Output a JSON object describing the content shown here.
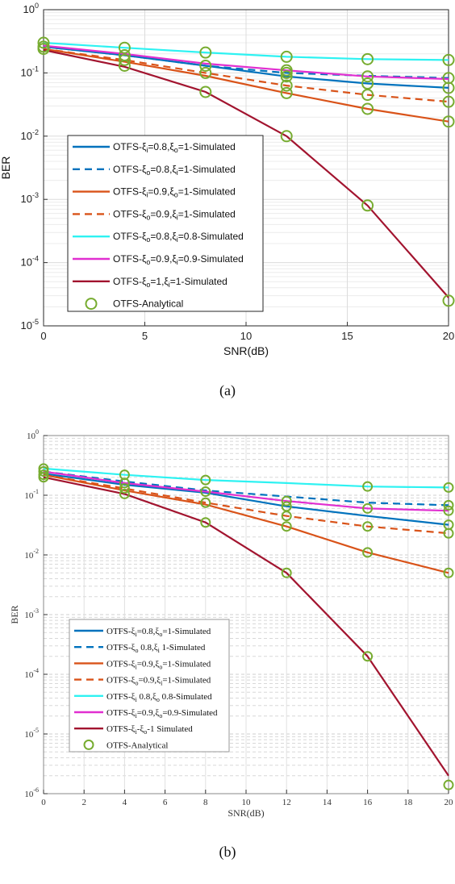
{
  "chart_data": [
    {
      "type": "line",
      "caption": "(a)",
      "xlabel": "SNR(dB)",
      "ylabel": "BER",
      "xlim": [
        0,
        20
      ],
      "ylim_exp": [
        -5,
        0
      ],
      "yscale": "log",
      "xticks": [
        0,
        5,
        10,
        15,
        20
      ],
      "grid": true,
      "legend_position": "bottom-left",
      "series": [
        {
          "label_parts": [
            "OTFS-ξ",
            "i",
            "=0.8,ξ",
            "o",
            "=1-Simulated"
          ],
          "color": "#0072BD",
          "dash": "solid",
          "x": [
            0,
            4,
            8,
            12,
            16,
            20
          ],
          "y": [
            0.26,
            0.19,
            0.13,
            0.088,
            0.068,
            0.058
          ]
        },
        {
          "label_parts": [
            "OTFS-ξ",
            "o",
            "=0.8,ξ",
            "i",
            "=1-Simulated"
          ],
          "color": "#0072BD",
          "dash": "dash",
          "x": [
            0,
            4,
            8,
            12,
            16,
            20
          ],
          "y": [
            0.26,
            0.19,
            0.13,
            0.1,
            0.09,
            0.083
          ]
        },
        {
          "label_parts": [
            "OTFS-ξ",
            "i",
            "=0.9,ξ",
            "o",
            "=1-Simulated"
          ],
          "color": "#D95319",
          "dash": "solid",
          "x": [
            0,
            4,
            8,
            12,
            16,
            20
          ],
          "y": [
            0.24,
            0.15,
            0.09,
            0.048,
            0.027,
            0.017
          ]
        },
        {
          "label_parts": [
            "OTFS-ξ",
            "o",
            "=0.9,ξ",
            "i",
            "=1-Simulated"
          ],
          "color": "#D95319",
          "dash": "dash",
          "x": [
            0,
            4,
            8,
            12,
            16,
            20
          ],
          "y": [
            0.24,
            0.16,
            0.1,
            0.063,
            0.045,
            0.035
          ]
        },
        {
          "label_parts": [
            "OTFS-ξ",
            "o",
            "=0.8,ξ",
            "i",
            "=0.8-Simulated"
          ],
          "color": "#2EF2F2",
          "dash": "solid",
          "x": [
            0,
            4,
            8,
            12,
            16,
            20
          ],
          "y": [
            0.3,
            0.25,
            0.21,
            0.18,
            0.165,
            0.16
          ]
        },
        {
          "label_parts": [
            "OTFS-ξ",
            "o",
            "=0.9,ξ",
            "i",
            "=0.9-Simulated"
          ],
          "color": "#E12FD0",
          "dash": "solid",
          "x": [
            0,
            4,
            8,
            12,
            16,
            20
          ],
          "y": [
            0.27,
            0.2,
            0.14,
            0.11,
            0.088,
            0.08
          ]
        },
        {
          "label_parts": [
            "OTFS-ξ",
            "o",
            "=1,ξ",
            "i",
            "=1-Simulated"
          ],
          "color": "#A2142F",
          "dash": "solid",
          "x": [
            0,
            4,
            8,
            12,
            16,
            20
          ],
          "y": [
            0.23,
            0.125,
            0.05,
            0.01,
            0.0008,
            2.8e-05
          ]
        }
      ],
      "analytical": {
        "label": "OTFS-Analytical",
        "color": "#77AC30",
        "points": [
          [
            0,
            0.3
          ],
          [
            0,
            0.26
          ],
          [
            0,
            0.24
          ],
          [
            4,
            0.25
          ],
          [
            4,
            0.19
          ],
          [
            4,
            0.16
          ],
          [
            4,
            0.13
          ],
          [
            8,
            0.21
          ],
          [
            8,
            0.13
          ],
          [
            8,
            0.1
          ],
          [
            8,
            0.05
          ],
          [
            12,
            0.18
          ],
          [
            12,
            0.11
          ],
          [
            12,
            0.1
          ],
          [
            12,
            0.088
          ],
          [
            12,
            0.063
          ],
          [
            12,
            0.048
          ],
          [
            12,
            0.01
          ],
          [
            16,
            0.165
          ],
          [
            16,
            0.088
          ],
          [
            16,
            0.068
          ],
          [
            16,
            0.045
          ],
          [
            16,
            0.027
          ],
          [
            16,
            0.0008
          ],
          [
            20,
            0.16
          ],
          [
            20,
            0.083
          ],
          [
            20,
            0.058
          ],
          [
            20,
            0.035
          ],
          [
            20,
            0.017
          ],
          [
            20,
            2.5e-05
          ]
        ]
      }
    },
    {
      "type": "line",
      "caption": "(b)",
      "xlabel": "SNR(dB)",
      "ylabel": "BER",
      "xlim": [
        0,
        20
      ],
      "ylim_exp": [
        -6,
        0
      ],
      "yscale": "log",
      "xticks": [
        0,
        2,
        4,
        6,
        8,
        10,
        12,
        14,
        16,
        18,
        20
      ],
      "grid": true,
      "legend_position": "bottom-left",
      "series": [
        {
          "label_parts": [
            "OTFS-ξ",
            "i",
            "=0.8,ξ",
            "o",
            "=1-Simulated"
          ],
          "color": "#0072BD",
          "dash": "solid",
          "x": [
            0,
            4,
            8,
            12,
            16,
            20
          ],
          "y": [
            0.23,
            0.15,
            0.11,
            0.065,
            0.045,
            0.032
          ]
        },
        {
          "label_parts": [
            "OTFS-ξ",
            "o",
            " 0.8,ξ",
            "i",
            " 1-Simulated"
          ],
          "color": "#0072BD",
          "dash": "dash",
          "x": [
            0,
            4,
            8,
            12,
            16,
            20
          ],
          "y": [
            0.25,
            0.17,
            0.12,
            0.095,
            0.075,
            0.068
          ]
        },
        {
          "label_parts": [
            "OTFS-ξ",
            "i",
            "=0.9,ξ",
            "o",
            "=1-Simulated"
          ],
          "color": "#D95319",
          "dash": "solid",
          "x": [
            0,
            4,
            8,
            12,
            16,
            20
          ],
          "y": [
            0.22,
            0.12,
            0.07,
            0.03,
            0.011,
            0.005
          ]
        },
        {
          "label_parts": [
            "OTFS-ξ",
            "o",
            "=0.9,ξ",
            "i",
            "=1-Simulated"
          ],
          "color": "#D95319",
          "dash": "dash",
          "x": [
            0,
            4,
            8,
            12,
            16,
            20
          ],
          "y": [
            0.22,
            0.13,
            0.075,
            0.045,
            0.03,
            0.023
          ]
        },
        {
          "label_parts": [
            "OTFS-ξ",
            "i",
            " 0.8,ξ",
            "o",
            " 0.8-Simulated"
          ],
          "color": "#2EF2F2",
          "dash": "solid",
          "x": [
            0,
            4,
            8,
            12,
            16,
            20
          ],
          "y": [
            0.28,
            0.22,
            0.18,
            0.16,
            0.14,
            0.135
          ]
        },
        {
          "label_parts": [
            "OTFS-ξ",
            "i",
            "=0.9,ξ",
            "o",
            "=0.9-Simulated"
          ],
          "color": "#E12FD0",
          "dash": "solid",
          "x": [
            0,
            4,
            8,
            12,
            16,
            20
          ],
          "y": [
            0.25,
            0.16,
            0.115,
            0.08,
            0.06,
            0.055
          ]
        },
        {
          "label_parts": [
            "OTFS-ξ",
            "i",
            "-ξ",
            "o",
            "-1 Simulated"
          ],
          "color": "#A2142F",
          "dash": "solid",
          "x": [
            0,
            4,
            8,
            12,
            16,
            20
          ],
          "y": [
            0.2,
            0.105,
            0.035,
            0.005,
            0.0002,
            2e-06
          ]
        }
      ],
      "analytical": {
        "label": "OTFS-Analytical",
        "color": "#77AC30",
        "points": [
          [
            0,
            0.28
          ],
          [
            0,
            0.25
          ],
          [
            0,
            0.22
          ],
          [
            0,
            0.2
          ],
          [
            4,
            0.22
          ],
          [
            4,
            0.16
          ],
          [
            4,
            0.13
          ],
          [
            4,
            0.105
          ],
          [
            8,
            0.18
          ],
          [
            8,
            0.115
          ],
          [
            8,
            0.075
          ],
          [
            8,
            0.035
          ],
          [
            12,
            0.08
          ],
          [
            12,
            0.065
          ],
          [
            12,
            0.045
          ],
          [
            12,
            0.03
          ],
          [
            12,
            0.005
          ],
          [
            16,
            0.14
          ],
          [
            16,
            0.06
          ],
          [
            16,
            0.03
          ],
          [
            16,
            0.011
          ],
          [
            16,
            0.0002
          ],
          [
            20,
            0.135
          ],
          [
            20,
            0.068
          ],
          [
            20,
            0.055
          ],
          [
            20,
            0.032
          ],
          [
            20,
            0.023
          ],
          [
            20,
            0.005
          ],
          [
            20,
            1.4e-06
          ]
        ]
      }
    }
  ]
}
